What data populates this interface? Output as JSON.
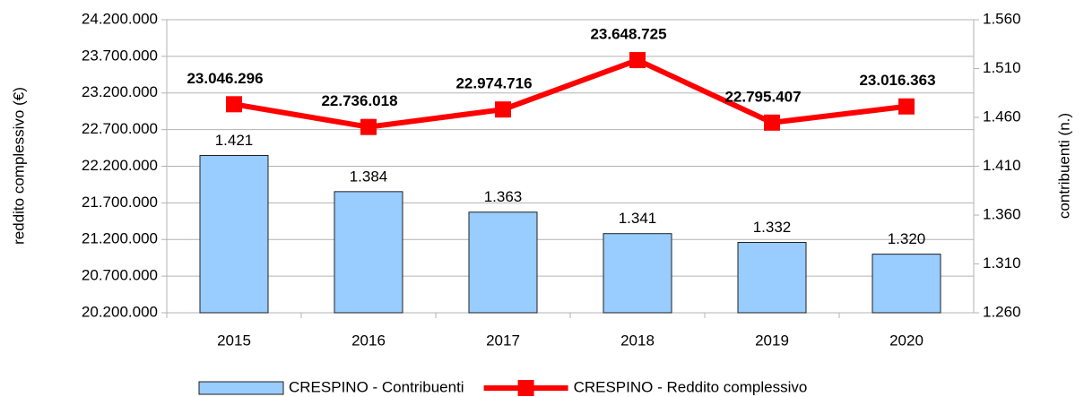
{
  "chart_data": {
    "type": "combo",
    "categories": [
      "2015",
      "2016",
      "2017",
      "2018",
      "2019",
      "2020"
    ],
    "series": [
      {
        "name": "CRESPINO - Contribuenti",
        "type": "bar",
        "axis": "y2",
        "color": "#99ccff",
        "values": [
          1421,
          1384,
          1363,
          1341,
          1332,
          1320
        ],
        "value_labels": [
          "1.421",
          "1.384",
          "1.363",
          "1.341",
          "1.332",
          "1.320"
        ]
      },
      {
        "name": "CRESPINO - Reddito complessivo",
        "type": "line",
        "color": "#ff0000",
        "values": [
          23046296,
          22736018,
          22974716,
          23648725,
          22795407,
          23016363
        ],
        "value_labels": [
          "23.046.296",
          "22.736.018",
          "22.974.716",
          "23.648.725",
          "22.795.407",
          "23.016.363"
        ]
      }
    ],
    "ylabel": "reddito complessivo (€)",
    "y2label": "contribuenti (n.)",
    "ylim": [
      20200000,
      24200000
    ],
    "yticks": [
      {
        "value": 20200000,
        "label": "20.200.000"
      },
      {
        "value": 20700000,
        "label": "20.700.000"
      },
      {
        "value": 21200000,
        "label": "21.200.000"
      },
      {
        "value": 21700000,
        "label": "21.700.000"
      },
      {
        "value": 22200000,
        "label": "22.200.000"
      },
      {
        "value": 22700000,
        "label": "22.700.000"
      },
      {
        "value": 23200000,
        "label": "23.200.000"
      },
      {
        "value": 23700000,
        "label": "23.700.000"
      },
      {
        "value": 24200000,
        "label": "24.200.000"
      }
    ],
    "y2lim": [
      1260,
      1560
    ],
    "y2ticks": [
      {
        "value": 1260,
        "label": "1.260"
      },
      {
        "value": 1310,
        "label": "1.310"
      },
      {
        "value": 1360,
        "label": "1.360"
      },
      {
        "value": 1410,
        "label": "1.410"
      },
      {
        "value": 1460,
        "label": "1.460"
      },
      {
        "value": 1510,
        "label": "1.510"
      },
      {
        "value": 1560,
        "label": "1.560"
      }
    ],
    "grid": true,
    "legend": "bottom"
  }
}
